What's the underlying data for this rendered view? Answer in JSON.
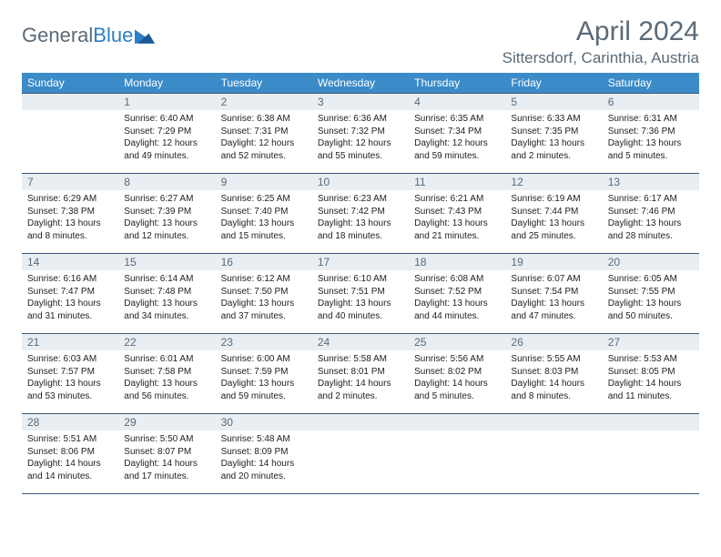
{
  "logo": {
    "general": "General",
    "blue": "Blue"
  },
  "title": "April 2024",
  "location": "Sittersdorf, Carinthia, Austria",
  "weekdays": [
    "Sunday",
    "Monday",
    "Tuesday",
    "Wednesday",
    "Thursday",
    "Friday",
    "Saturday"
  ],
  "colors": {
    "header_bg": "#3b8bc9",
    "header_fg": "#ffffff",
    "daynum_bg": "#e9eef2",
    "daynum_fg": "#5a6a78",
    "border": "#3b5a7a",
    "logo_gray": "#5a6a78",
    "logo_blue": "#2c7fc4"
  },
  "weeks": [
    [
      {
        "n": "",
        "sunrise": "",
        "sunset": "",
        "daylight": ""
      },
      {
        "n": "1",
        "sunrise": "Sunrise: 6:40 AM",
        "sunset": "Sunset: 7:29 PM",
        "daylight": "Daylight: 12 hours and 49 minutes."
      },
      {
        "n": "2",
        "sunrise": "Sunrise: 6:38 AM",
        "sunset": "Sunset: 7:31 PM",
        "daylight": "Daylight: 12 hours and 52 minutes."
      },
      {
        "n": "3",
        "sunrise": "Sunrise: 6:36 AM",
        "sunset": "Sunset: 7:32 PM",
        "daylight": "Daylight: 12 hours and 55 minutes."
      },
      {
        "n": "4",
        "sunrise": "Sunrise: 6:35 AM",
        "sunset": "Sunset: 7:34 PM",
        "daylight": "Daylight: 12 hours and 59 minutes."
      },
      {
        "n": "5",
        "sunrise": "Sunrise: 6:33 AM",
        "sunset": "Sunset: 7:35 PM",
        "daylight": "Daylight: 13 hours and 2 minutes."
      },
      {
        "n": "6",
        "sunrise": "Sunrise: 6:31 AM",
        "sunset": "Sunset: 7:36 PM",
        "daylight": "Daylight: 13 hours and 5 minutes."
      }
    ],
    [
      {
        "n": "7",
        "sunrise": "Sunrise: 6:29 AM",
        "sunset": "Sunset: 7:38 PM",
        "daylight": "Daylight: 13 hours and 8 minutes."
      },
      {
        "n": "8",
        "sunrise": "Sunrise: 6:27 AM",
        "sunset": "Sunset: 7:39 PM",
        "daylight": "Daylight: 13 hours and 12 minutes."
      },
      {
        "n": "9",
        "sunrise": "Sunrise: 6:25 AM",
        "sunset": "Sunset: 7:40 PM",
        "daylight": "Daylight: 13 hours and 15 minutes."
      },
      {
        "n": "10",
        "sunrise": "Sunrise: 6:23 AM",
        "sunset": "Sunset: 7:42 PM",
        "daylight": "Daylight: 13 hours and 18 minutes."
      },
      {
        "n": "11",
        "sunrise": "Sunrise: 6:21 AM",
        "sunset": "Sunset: 7:43 PM",
        "daylight": "Daylight: 13 hours and 21 minutes."
      },
      {
        "n": "12",
        "sunrise": "Sunrise: 6:19 AM",
        "sunset": "Sunset: 7:44 PM",
        "daylight": "Daylight: 13 hours and 25 minutes."
      },
      {
        "n": "13",
        "sunrise": "Sunrise: 6:17 AM",
        "sunset": "Sunset: 7:46 PM",
        "daylight": "Daylight: 13 hours and 28 minutes."
      }
    ],
    [
      {
        "n": "14",
        "sunrise": "Sunrise: 6:16 AM",
        "sunset": "Sunset: 7:47 PM",
        "daylight": "Daylight: 13 hours and 31 minutes."
      },
      {
        "n": "15",
        "sunrise": "Sunrise: 6:14 AM",
        "sunset": "Sunset: 7:48 PM",
        "daylight": "Daylight: 13 hours and 34 minutes."
      },
      {
        "n": "16",
        "sunrise": "Sunrise: 6:12 AM",
        "sunset": "Sunset: 7:50 PM",
        "daylight": "Daylight: 13 hours and 37 minutes."
      },
      {
        "n": "17",
        "sunrise": "Sunrise: 6:10 AM",
        "sunset": "Sunset: 7:51 PM",
        "daylight": "Daylight: 13 hours and 40 minutes."
      },
      {
        "n": "18",
        "sunrise": "Sunrise: 6:08 AM",
        "sunset": "Sunset: 7:52 PM",
        "daylight": "Daylight: 13 hours and 44 minutes."
      },
      {
        "n": "19",
        "sunrise": "Sunrise: 6:07 AM",
        "sunset": "Sunset: 7:54 PM",
        "daylight": "Daylight: 13 hours and 47 minutes."
      },
      {
        "n": "20",
        "sunrise": "Sunrise: 6:05 AM",
        "sunset": "Sunset: 7:55 PM",
        "daylight": "Daylight: 13 hours and 50 minutes."
      }
    ],
    [
      {
        "n": "21",
        "sunrise": "Sunrise: 6:03 AM",
        "sunset": "Sunset: 7:57 PM",
        "daylight": "Daylight: 13 hours and 53 minutes."
      },
      {
        "n": "22",
        "sunrise": "Sunrise: 6:01 AM",
        "sunset": "Sunset: 7:58 PM",
        "daylight": "Daylight: 13 hours and 56 minutes."
      },
      {
        "n": "23",
        "sunrise": "Sunrise: 6:00 AM",
        "sunset": "Sunset: 7:59 PM",
        "daylight": "Daylight: 13 hours and 59 minutes."
      },
      {
        "n": "24",
        "sunrise": "Sunrise: 5:58 AM",
        "sunset": "Sunset: 8:01 PM",
        "daylight": "Daylight: 14 hours and 2 minutes."
      },
      {
        "n": "25",
        "sunrise": "Sunrise: 5:56 AM",
        "sunset": "Sunset: 8:02 PM",
        "daylight": "Daylight: 14 hours and 5 minutes."
      },
      {
        "n": "26",
        "sunrise": "Sunrise: 5:55 AM",
        "sunset": "Sunset: 8:03 PM",
        "daylight": "Daylight: 14 hours and 8 minutes."
      },
      {
        "n": "27",
        "sunrise": "Sunrise: 5:53 AM",
        "sunset": "Sunset: 8:05 PM",
        "daylight": "Daylight: 14 hours and 11 minutes."
      }
    ],
    [
      {
        "n": "28",
        "sunrise": "Sunrise: 5:51 AM",
        "sunset": "Sunset: 8:06 PM",
        "daylight": "Daylight: 14 hours and 14 minutes."
      },
      {
        "n": "29",
        "sunrise": "Sunrise: 5:50 AM",
        "sunset": "Sunset: 8:07 PM",
        "daylight": "Daylight: 14 hours and 17 minutes."
      },
      {
        "n": "30",
        "sunrise": "Sunrise: 5:48 AM",
        "sunset": "Sunset: 8:09 PM",
        "daylight": "Daylight: 14 hours and 20 minutes."
      },
      {
        "n": "",
        "sunrise": "",
        "sunset": "",
        "daylight": ""
      },
      {
        "n": "",
        "sunrise": "",
        "sunset": "",
        "daylight": ""
      },
      {
        "n": "",
        "sunrise": "",
        "sunset": "",
        "daylight": ""
      },
      {
        "n": "",
        "sunrise": "",
        "sunset": "",
        "daylight": ""
      }
    ]
  ]
}
